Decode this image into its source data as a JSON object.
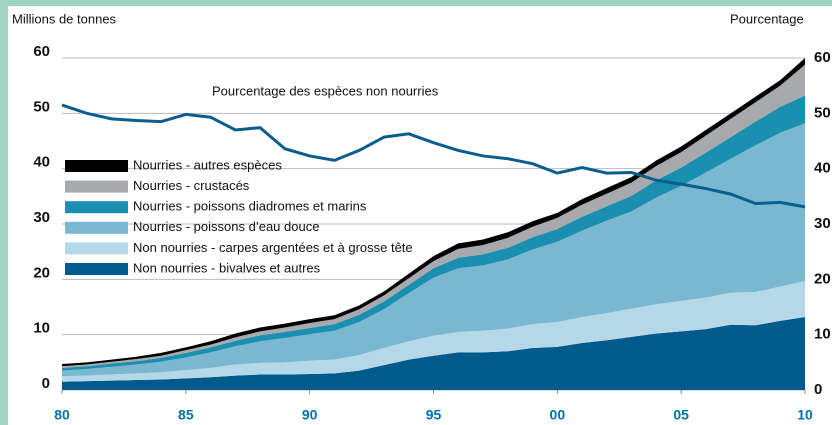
{
  "chart_data": {
    "type": "stacked-area",
    "y_label": "Millions de tonnes",
    "y2_label": "Pourcentage",
    "annotation": "Pourcentage des espèces non nourries",
    "x": [
      1980,
      1981,
      1982,
      1983,
      1984,
      1985,
      1986,
      1987,
      1988,
      1989,
      1990,
      1991,
      1992,
      1993,
      1994,
      1995,
      1996,
      1997,
      1998,
      1999,
      2000,
      2001,
      2002,
      2003,
      2004,
      2005,
      2006,
      2007,
      2008,
      2009,
      2010
    ],
    "xlim": [
      1980,
      2010
    ],
    "xticks": [
      {
        "value": 1980,
        "label": "80"
      },
      {
        "value": 1985,
        "label": "85"
      },
      {
        "value": 1990,
        "label": "90"
      },
      {
        "value": 1995,
        "label": "95"
      },
      {
        "value": 2000,
        "label": "00"
      },
      {
        "value": 2005,
        "label": "05"
      },
      {
        "value": 2010,
        "label": "10"
      }
    ],
    "ylim": [
      0,
      60
    ],
    "yticks": [
      0,
      10,
      20,
      30,
      40,
      50,
      60
    ],
    "y2lim": [
      0,
      60
    ],
    "y2ticks": [
      0,
      10,
      20,
      30,
      40,
      50,
      60
    ],
    "grid": true,
    "legend": "upper left",
    "series": [
      {
        "name": "Nourries - autres espèces",
        "color": "#000000",
        "values": [
          0.4,
          0.4,
          0.4,
          0.4,
          0.5,
          0.5,
          0.6,
          0.7,
          0.7,
          0.7,
          0.7,
          0.7,
          0.7,
          0.7,
          0.8,
          0.9,
          1.0,
          1.0,
          1.0,
          1.0,
          0.9,
          1.0,
          1.0,
          1.0,
          1.0,
          1.0,
          1.0,
          1.0,
          1.0,
          1.0,
          1.2
        ]
      },
      {
        "name": "Nourries - crustacés",
        "color": "#a7a9ac",
        "values": [
          0.3,
          0.3,
          0.3,
          0.4,
          0.4,
          0.5,
          0.5,
          0.6,
          0.7,
          0.8,
          0.9,
          0.9,
          1.0,
          1.1,
          1.2,
          1.3,
          1.6,
          1.7,
          1.8,
          1.9,
          2.0,
          2.2,
          2.3,
          2.4,
          2.6,
          2.8,
          3.1,
          3.3,
          3.5,
          3.8,
          5.6
        ]
      },
      {
        "name": "Nourries - poissons diadromes et marins",
        "color": "#1a8fb0",
        "values": [
          0.5,
          0.5,
          0.6,
          0.6,
          0.7,
          0.8,
          0.9,
          1.0,
          1.1,
          1.1,
          1.1,
          1.2,
          1.3,
          1.4,
          1.5,
          1.7,
          1.9,
          2.0,
          2.1,
          2.2,
          2.3,
          2.5,
          2.6,
          2.8,
          3.1,
          3.3,
          3.6,
          3.9,
          4.3,
          4.7,
          5.0
        ]
      },
      {
        "name": "Nourries - poissons d’eau douce",
        "color": "#7ab8d0",
        "values": [
          1.0,
          1.2,
          1.4,
          1.6,
          1.9,
          2.3,
          2.8,
          3.3,
          3.9,
          4.4,
          4.8,
          5.2,
          6.0,
          7.0,
          8.7,
          10.5,
          11.5,
          11.8,
          12.5,
          13.5,
          14.5,
          15.6,
          16.7,
          17.6,
          19.3,
          20.8,
          22.6,
          24.2,
          26.5,
          27.8,
          28.5
        ]
      },
      {
        "name": "Non nourries - carpes argentées et à grosse tête",
        "color": "#b5d8e8",
        "values": [
          1.0,
          1.0,
          1.1,
          1.2,
          1.3,
          1.5,
          1.7,
          2.0,
          2.1,
          2.2,
          2.4,
          2.5,
          2.8,
          3.1,
          3.3,
          3.6,
          3.7,
          3.9,
          4.1,
          4.3,
          4.5,
          4.7,
          4.9,
          5.1,
          5.3,
          5.5,
          5.7,
          5.8,
          6.0,
          6.2,
          6.5
        ]
      },
      {
        "name": "Non nourries - bivalves et autres",
        "color": "#005b8c",
        "values": [
          1.5,
          1.6,
          1.7,
          1.8,
          1.9,
          2.1,
          2.3,
          2.6,
          2.8,
          2.8,
          2.9,
          3.0,
          3.5,
          4.5,
          5.5,
          6.2,
          6.8,
          6.8,
          7.0,
          7.6,
          7.8,
          8.5,
          9.0,
          9.6,
          10.2,
          10.6,
          11.0,
          11.8,
          11.7,
          12.5,
          13.2
        ]
      },
      {
        "name": "Pourcentage des espèces non nourries",
        "color": "#0a5d8f",
        "axis": "y2",
        "type": "line",
        "values": [
          51.5,
          50,
          49,
          48.7,
          48.5,
          49.8,
          49.3,
          47,
          47.4,
          43.6,
          42.3,
          41.5,
          43.3,
          45.7,
          46.3,
          44.7,
          43.3,
          42.3,
          41.8,
          40.9,
          39.2,
          40.2,
          39.2,
          39.3,
          37.9,
          37.2,
          36.4,
          35.4,
          33.7,
          33.9,
          33.1
        ]
      }
    ]
  }
}
